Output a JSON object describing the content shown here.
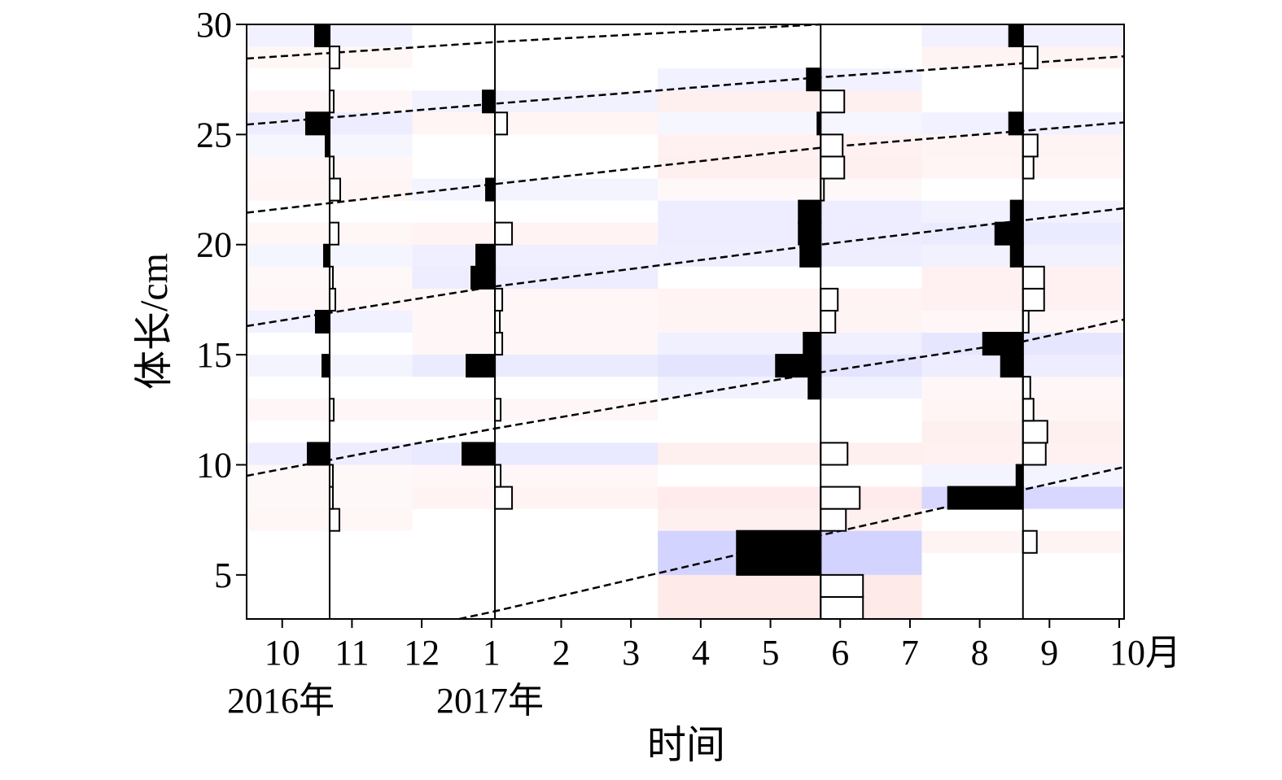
{
  "chart_data": {
    "type": "lfq",
    "x_label": "时间",
    "y_label": "体长/cm",
    "annotations": [
      "2016年",
      "2017年"
    ],
    "xlim": [
      -0.51,
      12.07
    ],
    "xticks": [
      {
        "value": 0,
        "label": "10"
      },
      {
        "value": 1,
        "label": "11"
      },
      {
        "value": 2,
        "label": "12"
      },
      {
        "value": 3,
        "label": "1"
      },
      {
        "value": 4,
        "label": "2"
      },
      {
        "value": 5,
        "label": "3"
      },
      {
        "value": 6,
        "label": "4"
      },
      {
        "value": 7,
        "label": "5"
      },
      {
        "value": 8,
        "label": "6"
      },
      {
        "value": 9,
        "label": "7"
      },
      {
        "value": 10,
        "label": "8"
      },
      {
        "value": 11,
        "label": "9"
      },
      {
        "value": 12,
        "label": "10月"
      }
    ],
    "ylim": [
      3,
      30
    ],
    "yticks": [
      5,
      10,
      15,
      20,
      25,
      30
    ],
    "bins": [
      3,
      4,
      5,
      6,
      7,
      8,
      9,
      10,
      11,
      12,
      13,
      14,
      15,
      16,
      17,
      18,
      19,
      20,
      21,
      22,
      23,
      24,
      25,
      26,
      27,
      28,
      29,
      30
    ],
    "samples": [
      {
        "x": 0.68,
        "values": [
          0,
          0,
          0,
          0,
          0.12,
          0.04,
          0.04,
          -0.27,
          0,
          0.05,
          0,
          -0.09,
          0,
          -0.17,
          0.07,
          0.04,
          -0.07,
          0.11,
          0,
          0.13,
          0.05,
          -0.05,
          -0.29,
          0.05,
          0,
          0.12,
          -0.18
        ]
      },
      {
        "x": 3.05,
        "values": [
          0,
          0,
          0,
          0,
          0,
          0.21,
          0.07,
          -0.4,
          0,
          0.07,
          0,
          -0.35,
          0.09,
          0.06,
          0.09,
          -0.29,
          -0.23,
          0.21,
          0,
          -0.11,
          0,
          0,
          0.15,
          -0.15,
          0,
          0,
          0
        ]
      },
      {
        "x": 7.72,
        "values": [
          0.52,
          0.52,
          -1.03,
          -1.03,
          0.31,
          0.48,
          0,
          0.33,
          0,
          0,
          -0.15,
          -0.55,
          -0.21,
          0.18,
          0.21,
          0,
          -0.25,
          -0.27,
          -0.27,
          0.04,
          0.29,
          0.27,
          -0.04,
          0.29,
          -0.17,
          0,
          0
        ]
      },
      {
        "x": 10.62,
        "values": [
          0,
          0,
          0,
          0.17,
          0,
          -0.92,
          -0.08,
          0.28,
          0.3,
          0.13,
          0.09,
          -0.27,
          -0.49,
          0.07,
          0.26,
          0.26,
          -0.15,
          -0.34,
          -0.15,
          0,
          0.13,
          0.18,
          -0.17,
          0,
          0,
          0.18,
          -0.17
        ]
      }
    ],
    "curves": [
      {
        "x": [
          -0.51,
          3.05,
          7.72
        ],
        "y": [
          28.45,
          29.2,
          30
        ]
      },
      {
        "x": [
          -0.51,
          3.05,
          7.72,
          12.07
        ],
        "y": [
          25.45,
          26.4,
          27.6,
          28.55
        ]
      },
      {
        "x": [
          -0.51,
          3.05,
          7.72,
          12.07
        ],
        "y": [
          21.45,
          22.75,
          24.4,
          25.55
        ]
      },
      {
        "x": [
          -0.51,
          3.05,
          7.72,
          12.07
        ],
        "y": [
          16.3,
          18.1,
          20.0,
          21.65
        ]
      },
      {
        "x": [
          -0.51,
          3.05,
          7.72,
          10.62,
          12.07
        ],
        "y": [
          9.5,
          11.65,
          14.2,
          15.6,
          16.6
        ]
      },
      {
        "x": [
          2.54,
          3.05,
          7.72,
          12.07
        ],
        "y": [
          3.0,
          3.35,
          6.8,
          9.9
        ]
      }
    ]
  }
}
